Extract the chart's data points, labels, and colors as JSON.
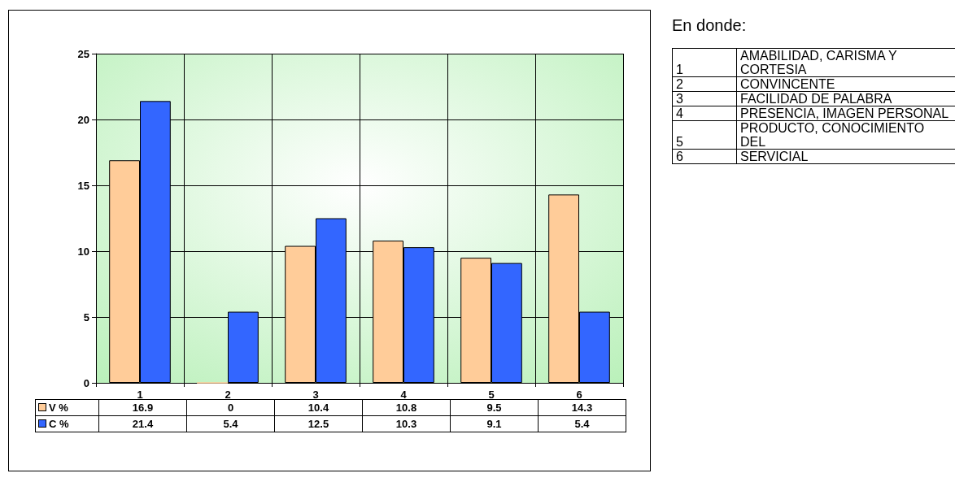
{
  "chart_data": {
    "type": "bar",
    "categories": [
      "1",
      "2",
      "3",
      "4",
      "5",
      "6"
    ],
    "series": [
      {
        "name": "V %",
        "color": "#ffcc99",
        "values": [
          16.9,
          0,
          10.4,
          10.8,
          9.5,
          14.3
        ]
      },
      {
        "name": "C %",
        "color": "#3366ff",
        "values": [
          21.4,
          5.4,
          12.5,
          10.3,
          9.1,
          5.4
        ]
      }
    ],
    "ylim": [
      0,
      25
    ],
    "yticks": [
      0,
      5,
      10,
      15,
      20,
      25
    ],
    "grid": true,
    "legend": "bottom",
    "data_labels": true,
    "annotations": [
      "En donde:",
      "1",
      "AMABILIDAD, CARISMA Y CORTESIA",
      "2",
      "CONVINCENTE",
      "3",
      "FACILIDAD DE PALABRA",
      "4",
      "PRESENCIA, IMAGEN PERSONAL",
      "5",
      "PRODUCTO, CONOCIMIENTO DEL",
      "6",
      "SERVICIAL"
    ]
  }
}
